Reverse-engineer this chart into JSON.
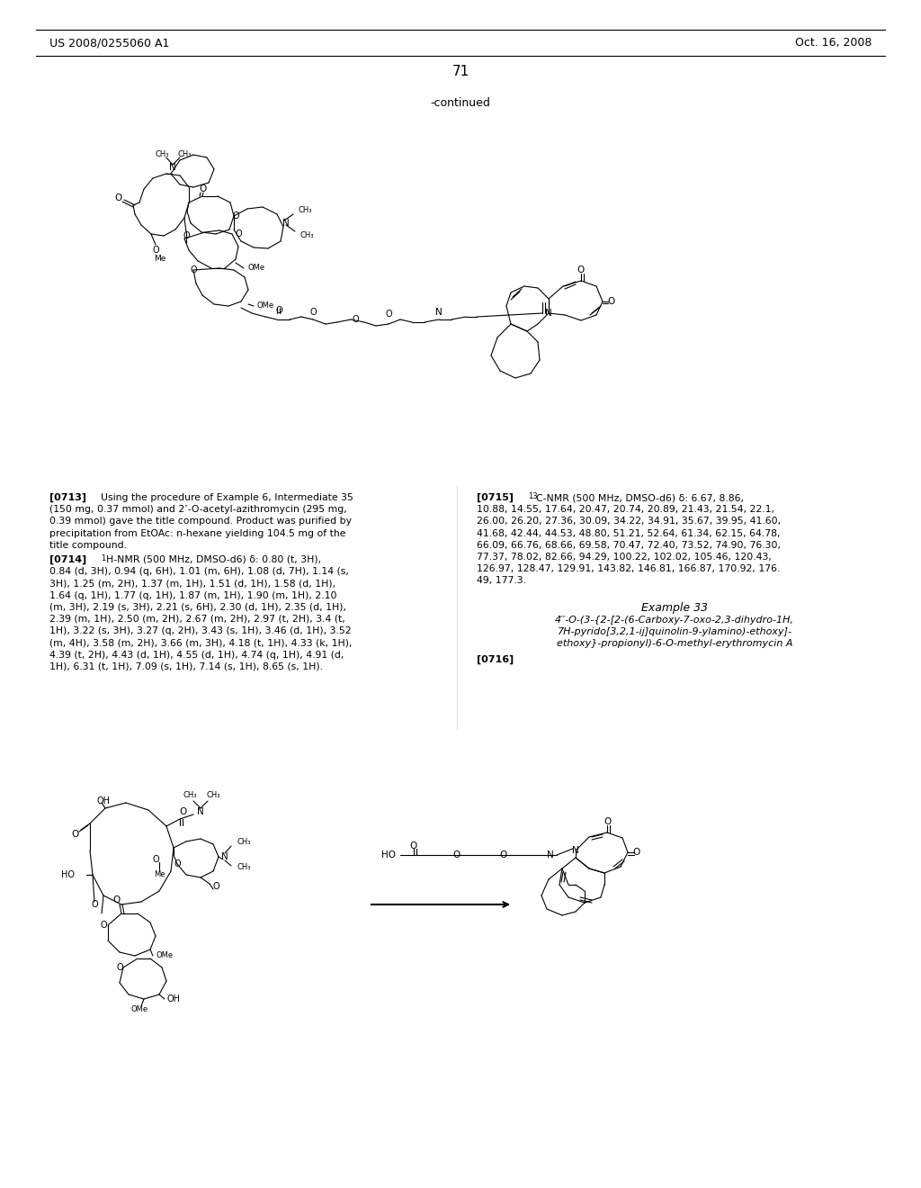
{
  "header_left": "US 2008/0255060 A1",
  "header_right": "Oct. 16, 2008",
  "page_number": "71",
  "continued_label": "-continued",
  "p0713_bold": "[0713]",
  "p0713_text": "Using the procedure of Example 6, Intermediate 35\n(150 mg, 0.37 mmol) and 2’-O-acetyl-azithromycin (295 mg,\n0.39 mmol) gave the title compound. Product was purified by\nprecipitation from EtOAc: n-hexane yielding 104.5 mg of the\ntitle compound.",
  "p0714_bold": "[0714]",
  "p0714_super": "1",
  "p0714_text": "H-NMR (500 MHz, DMSO-d6) δ: 0.80 (t, 3H),\n0.84 (d, 3H), 0.94 (q, 6H), 1.01 (m, 6H), 1.08 (d, 7H), 1.14 (s,\n3H), 1.25 (m, 2H), 1.37 (m, 1H), 1.51 (d, 1H), 1.58 (d, 1H),\n1.64 (q, 1H), 1.77 (q, 1H), 1.87 (m, 1H), 1.90 (m, 1H), 2.10\n(m, 3H), 2.19 (s, 3H), 2.21 (s, 6H), 2.30 (d, 1H), 2.35 (d, 1H),\n2.39 (m, 1H), 2.50 (m, 2H), 2.67 (m, 2H), 2.97 (t, 2H), 3.4 (t,\n1H), 3.22 (s, 3H), 3.27 (q, 2H), 3.43 (s, 1H), 3.46 (d, 1H), 3.52\n(m, 4H), 3.58 (m, 2H), 3.66 (m, 3H), 4.18 (t, 1H), 4.33 (k, 1H),\n4.39 (t, 2H), 4.43 (d, 1H), 4.55 (d, 1H), 4.74 (q, 1H), 4.91 (d,\n1H), 6.31 (t, 1H), 7.09 (s, 1H), 7.14 (s, 1H), 8.65 (s, 1H).",
  "p0715_bold": "[0715]",
  "p0715_super": "13",
  "p0715_text": "C-NMR (500 MHz, DMSO-d6) δ: 6.67, 8.86,\n10.88, 14.55, 17.64, 20.47, 20.74, 20.89, 21.43, 21.54, 22.1,\n26.00, 26.20, 27.36, 30.09, 34.22, 34.91, 35.67, 39.95, 41.60,\n41.68, 42.44, 44.53, 48.80, 51.21, 52.64, 61.34, 62.15, 64.78,\n66.09, 66.76, 68.66, 69.58, 70.47, 72.40, 73.52, 74.90, 76.30,\n77.37, 78.02, 82.66, 94.29, 100.22, 102.02, 105.46, 120.43,\n126.97, 128.47, 129.91, 143.82, 146.81, 166.87, 170.92, 176.\n49, 177.3.",
  "ex33_title": "Example 33",
  "ex33_name": "4′′-O-(3-{2-[2-(6-Carboxy-7-oxo-2,3-dihydro-1H,\n7H-pyrido[3,2,1-ij]quinolin-9-ylamino)-ethoxy]-\nethoxy}-propionyl)-6-O-methyl-erythromycin A",
  "p0716_bold": "[0716]",
  "bg": "#ffffff",
  "fg": "#000000"
}
